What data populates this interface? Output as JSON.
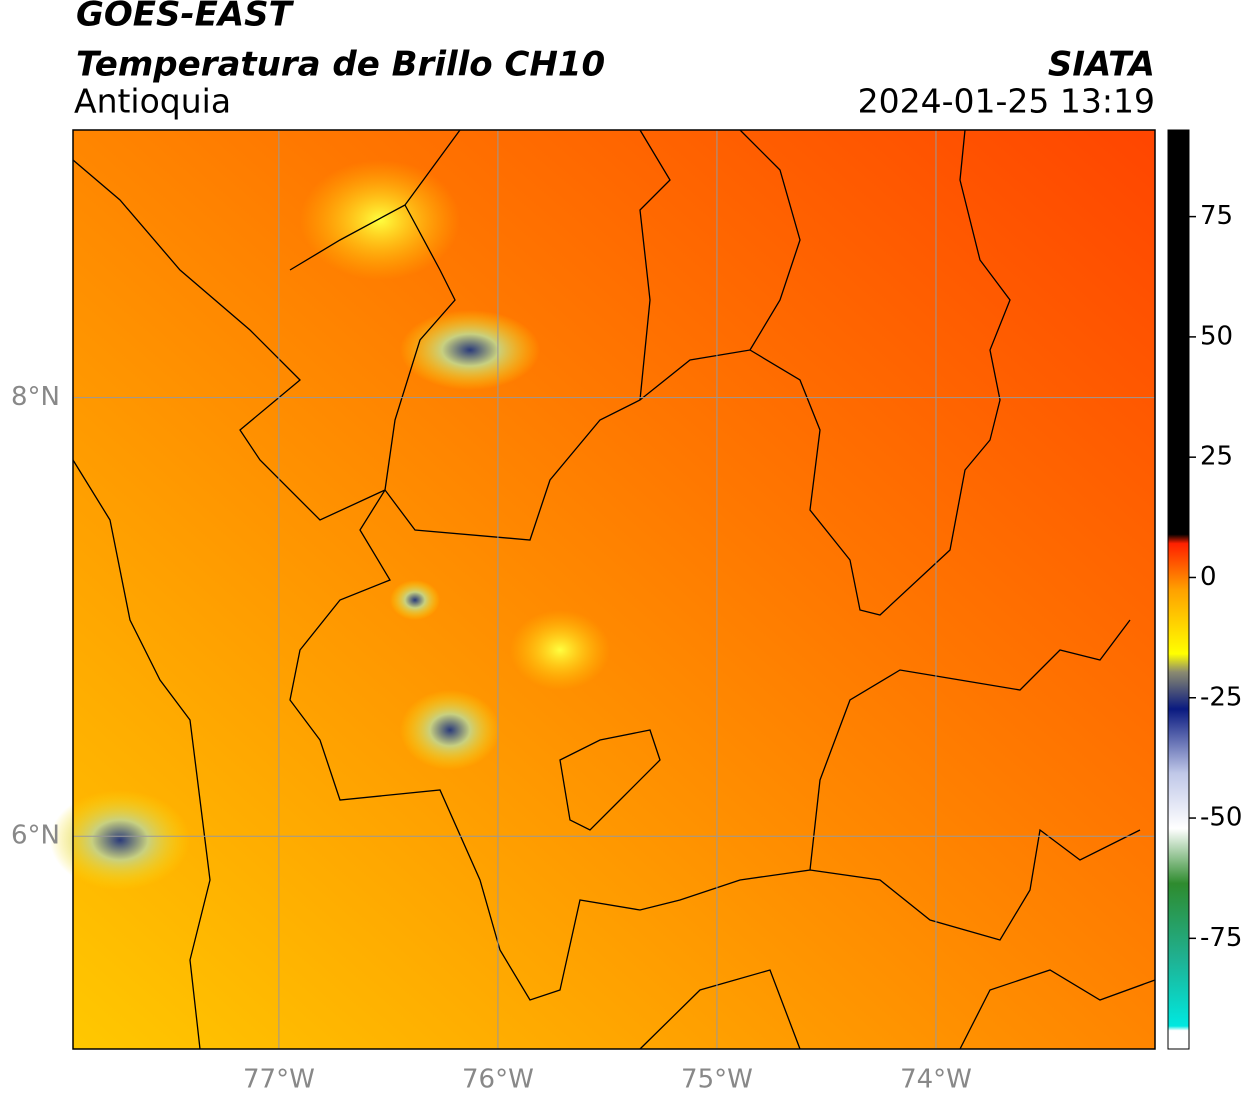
{
  "header": {
    "title": "GOES-EAST",
    "subtitle": "Temperatura de Brillo CH10",
    "region": "Antioquia",
    "source": "SIATA",
    "timestamp": "2024-01-25 13:19"
  },
  "map": {
    "xlim": [
      -77.94,
      -73.0
    ],
    "ylim": [
      5.03,
      9.22
    ],
    "xticks": [
      {
        "value": -77,
        "label": "77°W"
      },
      {
        "value": -76,
        "label": "76°W"
      },
      {
        "value": -75,
        "label": "75°W"
      },
      {
        "value": -74,
        "label": "74°W"
      }
    ],
    "yticks": [
      {
        "value": 8,
        "label": "8°N"
      },
      {
        "value": 6,
        "label": "6°N"
      }
    ],
    "grid": true
  },
  "colorbar": {
    "lim": [
      -98,
      93
    ],
    "ticks": [
      75,
      50,
      25,
      0,
      -25,
      -50,
      -75
    ]
  }
}
